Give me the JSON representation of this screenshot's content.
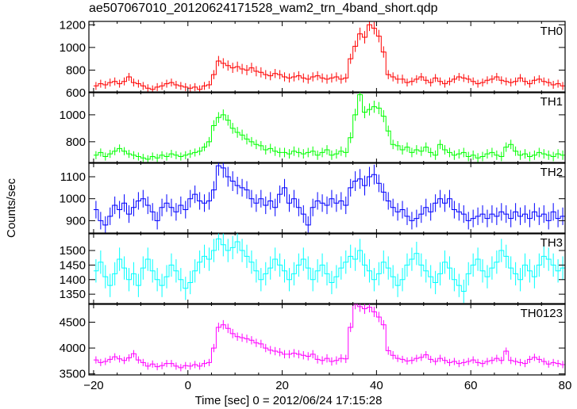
{
  "chart_data": {
    "type": "line",
    "title": "ae507067010_20120624171528_wam2_trn_4band_short.qdp",
    "xlabel": "Time [sec] 0 = 2012/06/24 17:15:28",
    "ylabel": "Counts/sec",
    "xlim": [
      -21,
      80
    ],
    "xticks": [
      -20,
      0,
      20,
      40,
      60,
      80
    ],
    "bin_width": 1,
    "panels": [
      {
        "name": "TH0",
        "color": "#ff0000",
        "ylim": [
          600,
          1230
        ],
        "yticks": [
          600,
          800,
          1000,
          1200
        ],
        "values": [
          660,
          680,
          670,
          690,
          700,
          680,
          700,
          740,
          690,
          680,
          660,
          640,
          630,
          650,
          660,
          680,
          690,
          670,
          660,
          650,
          640,
          650,
          630,
          660,
          670,
          760,
          880,
          860,
          840,
          820,
          830,
          810,
          800,
          820,
          790,
          780,
          760,
          750,
          770,
          760,
          740,
          730,
          740,
          750,
          730,
          720,
          740,
          750,
          730,
          720,
          730,
          740,
          720,
          730,
          900,
          1010,
          1120,
          1090,
          1200,
          1170,
          1100,
          960,
          760,
          740,
          720,
          720,
          690,
          700,
          720,
          740,
          710,
          690,
          730,
          700,
          680,
          700,
          720,
          740,
          730,
          720,
          700,
          680,
          690,
          710,
          720,
          740,
          710,
          700,
          690,
          700,
          730,
          700,
          680,
          710,
          720,
          700,
          690,
          670,
          680,
          660
        ],
        "errors": [
          35,
          35,
          35,
          35,
          35,
          35,
          35,
          35,
          35,
          35,
          35,
          35,
          35,
          35,
          35,
          35,
          35,
          35,
          35,
          35,
          35,
          35,
          35,
          35,
          35,
          40,
          45,
          45,
          45,
          45,
          45,
          45,
          45,
          45,
          45,
          45,
          40,
          40,
          40,
          40,
          40,
          40,
          40,
          40,
          40,
          40,
          40,
          40,
          40,
          40,
          40,
          40,
          40,
          40,
          45,
          50,
          55,
          55,
          55,
          55,
          55,
          50,
          40,
          40,
          40,
          40,
          35,
          35,
          35,
          35,
          35,
          35,
          35,
          35,
          35,
          35,
          35,
          35,
          35,
          35,
          35,
          35,
          35,
          35,
          35,
          35,
          35,
          35,
          35,
          35,
          35,
          35,
          35,
          35,
          35,
          35,
          35,
          35,
          35,
          35
        ]
      },
      {
        "name": "TH1",
        "color": "#00ff00",
        "ylim": [
          640,
          1170
        ],
        "yticks": [
          800,
          1000
        ],
        "values": [
          700,
          720,
          690,
          710,
          730,
          750,
          730,
          710,
          700,
          690,
          680,
          670,
          690,
          680,
          700,
          690,
          710,
          700,
          690,
          700,
          710,
          720,
          730,
          760,
          800,
          920,
          980,
          1000,
          960,
          900,
          870,
          850,
          820,
          800,
          780,
          770,
          740,
          750,
          730,
          720,
          720,
          710,
          730,
          720,
          710,
          720,
          730,
          700,
          720,
          740,
          700,
          710,
          730,
          720,
          830,
          1000,
          1150,
          1020,
          1040,
          1060,
          1050,
          990,
          880,
          780,
          770,
          740,
          760,
          720,
          740,
          730,
          760,
          720,
          700,
          780,
          740,
          720,
          700,
          710,
          720,
          690,
          700,
          680,
          690,
          710,
          720,
          700,
          690,
          760,
          780,
          730,
          700,
          710,
          690,
          700,
          720,
          710,
          700,
          690,
          710,
          700
        ],
        "errors": [
          30,
          30,
          30,
          30,
          30,
          30,
          30,
          30,
          30,
          30,
          30,
          30,
          30,
          30,
          30,
          30,
          30,
          30,
          30,
          30,
          30,
          30,
          30,
          30,
          35,
          40,
          40,
          40,
          40,
          40,
          40,
          40,
          40,
          35,
          35,
          35,
          35,
          35,
          35,
          35,
          35,
          35,
          35,
          35,
          35,
          35,
          35,
          35,
          35,
          35,
          35,
          35,
          35,
          35,
          40,
          45,
          50,
          45,
          45,
          45,
          45,
          45,
          40,
          35,
          35,
          35,
          35,
          35,
          35,
          35,
          35,
          35,
          35,
          35,
          35,
          35,
          35,
          35,
          35,
          35,
          35,
          35,
          35,
          35,
          35,
          35,
          35,
          35,
          35,
          35,
          35,
          35,
          35,
          35,
          35,
          35,
          35,
          35,
          35,
          35
        ]
      },
      {
        "name": "TH2",
        "color": "#0000ff",
        "ylim": [
          840,
          1165
        ],
        "yticks": [
          900,
          1000,
          1100
        ],
        "values": [
          950,
          900,
          880,
          920,
          970,
          950,
          980,
          930,
          960,
          990,
          1000,
          970,
          940,
          900,
          960,
          980,
          960,
          940,
          970,
          950,
          1000,
          1020,
          990,
          980,
          990,
          1040,
          1150,
          1140,
          1100,
          1080,
          1060,
          1050,
          1040,
          1000,
          980,
          1000,
          970,
          990,
          960,
          1020,
          1050,
          980,
          1000,
          960,
          930,
          880,
          960,
          990,
          980,
          970,
          1000,
          980,
          990,
          970,
          1050,
          1080,
          1090,
          1060,
          1100,
          1110,
          1070,
          1030,
          990,
          960,
          940,
          950,
          920,
          900,
          910,
          930,
          960,
          940,
          980,
          1000,
          980,
          1000,
          950,
          940,
          930,
          900,
          910,
          920,
          930,
          910,
          930,
          920,
          940,
          930,
          910,
          940,
          920,
          930,
          910,
          940,
          920,
          930,
          900,
          940,
          910,
          920
        ],
        "errors": [
          40,
          40,
          40,
          40,
          40,
          40,
          40,
          40,
          40,
          40,
          40,
          40,
          40,
          40,
          40,
          40,
          40,
          40,
          40,
          40,
          40,
          40,
          40,
          40,
          40,
          40,
          45,
          45,
          45,
          45,
          40,
          40,
          40,
          40,
          40,
          40,
          40,
          40,
          40,
          40,
          40,
          40,
          40,
          40,
          40,
          40,
          40,
          40,
          40,
          40,
          40,
          40,
          40,
          40,
          40,
          45,
          45,
          45,
          45,
          45,
          40,
          40,
          40,
          40,
          40,
          40,
          40,
          40,
          40,
          40,
          40,
          40,
          40,
          40,
          40,
          40,
          40,
          40,
          40,
          40,
          40,
          40,
          40,
          40,
          40,
          40,
          40,
          40,
          40,
          40,
          40,
          40,
          40,
          40,
          40,
          40,
          40,
          40,
          40,
          40
        ]
      },
      {
        "name": "TH3",
        "color": "#00ffff",
        "ylim": [
          1315,
          1560
        ],
        "yticks": [
          1350,
          1400,
          1450,
          1500
        ],
        "values": [
          1430,
          1460,
          1410,
          1380,
          1420,
          1470,
          1440,
          1400,
          1420,
          1380,
          1440,
          1470,
          1430,
          1400,
          1380,
          1410,
          1450,
          1430,
          1400,
          1370,
          1390,
          1430,
          1460,
          1480,
          1470,
          1500,
          1540,
          1520,
          1500,
          1510,
          1530,
          1500,
          1480,
          1460,
          1430,
          1400,
          1420,
          1440,
          1470,
          1450,
          1430,
          1400,
          1420,
          1450,
          1470,
          1440,
          1400,
          1430,
          1450,
          1420,
          1390,
          1410,
          1440,
          1460,
          1480,
          1470,
          1500,
          1450,
          1430,
          1400,
          1420,
          1460,
          1440,
          1410,
          1380,
          1400,
          1450,
          1470,
          1490,
          1450,
          1430,
          1410,
          1390,
          1420,
          1460,
          1440,
          1400,
          1380,
          1360,
          1420,
          1450,
          1470,
          1430,
          1410,
          1440,
          1460,
          1500,
          1480,
          1440,
          1420,
          1400,
          1450,
          1430,
          1410,
          1450,
          1480,
          1470,
          1450,
          1430,
          1440
        ],
        "errors": [
          40,
          40,
          40,
          40,
          40,
          40,
          40,
          40,
          40,
          40,
          40,
          40,
          40,
          40,
          40,
          40,
          40,
          40,
          40,
          40,
          40,
          40,
          40,
          40,
          40,
          40,
          40,
          40,
          40,
          40,
          40,
          40,
          40,
          40,
          40,
          40,
          40,
          40,
          40,
          40,
          40,
          40,
          40,
          40,
          40,
          40,
          40,
          40,
          40,
          40,
          40,
          40,
          40,
          40,
          40,
          40,
          40,
          40,
          40,
          40,
          40,
          40,
          40,
          40,
          40,
          40,
          40,
          40,
          40,
          40,
          40,
          40,
          40,
          40,
          40,
          40,
          40,
          40,
          40,
          40,
          40,
          40,
          40,
          40,
          40,
          40,
          40,
          40,
          40,
          40,
          40,
          40,
          40,
          40,
          40,
          40,
          40,
          40,
          40,
          40
        ]
      },
      {
        "name": "TH0123",
        "color": "#ff00ff",
        "ylim": [
          3480,
          4860
        ],
        "yticks": [
          3500,
          4000,
          4500
        ],
        "values": [
          3770,
          3720,
          3740,
          3780,
          3830,
          3790,
          3760,
          3810,
          3890,
          3770,
          3720,
          3650,
          3690,
          3640,
          3660,
          3700,
          3700,
          3650,
          3620,
          3660,
          3650,
          3680,
          3650,
          3700,
          3720,
          4000,
          4400,
          4450,
          4380,
          4280,
          4220,
          4200,
          4180,
          4150,
          4100,
          4080,
          4000,
          3960,
          3940,
          3920,
          3880,
          3880,
          3900,
          3880,
          3860,
          3840,
          3880,
          3780,
          3760,
          3800,
          3740,
          3760,
          3800,
          3790,
          4400,
          4850,
          4800,
          4760,
          4790,
          4700,
          4600,
          4450,
          3950,
          3860,
          3800,
          3780,
          3750,
          3760,
          3800,
          3820,
          3870,
          3780,
          3740,
          3800,
          3760,
          3720,
          3740,
          3700,
          3720,
          3740,
          3770,
          3720,
          3700,
          3740,
          3760,
          3800,
          3760,
          3940,
          3760,
          3740,
          3720,
          3700,
          3780,
          3820,
          3780,
          3740,
          3690,
          3720,
          3700,
          3680
        ],
        "errors": [
          70,
          70,
          70,
          70,
          70,
          70,
          70,
          70,
          70,
          70,
          70,
          70,
          70,
          70,
          70,
          70,
          70,
          70,
          70,
          70,
          70,
          70,
          70,
          70,
          70,
          80,
          90,
          90,
          90,
          90,
          80,
          80,
          80,
          80,
          80,
          80,
          80,
          80,
          80,
          80,
          80,
          80,
          80,
          80,
          80,
          80,
          80,
          80,
          80,
          80,
          80,
          80,
          80,
          80,
          90,
          100,
          100,
          100,
          100,
          100,
          100,
          90,
          80,
          80,
          70,
          70,
          70,
          70,
          70,
          70,
          70,
          70,
          70,
          70,
          70,
          70,
          70,
          70,
          70,
          70,
          70,
          70,
          70,
          70,
          70,
          70,
          70,
          70,
          70,
          70,
          70,
          70,
          70,
          70,
          70,
          70,
          70,
          70,
          70,
          70
        ]
      }
    ]
  }
}
